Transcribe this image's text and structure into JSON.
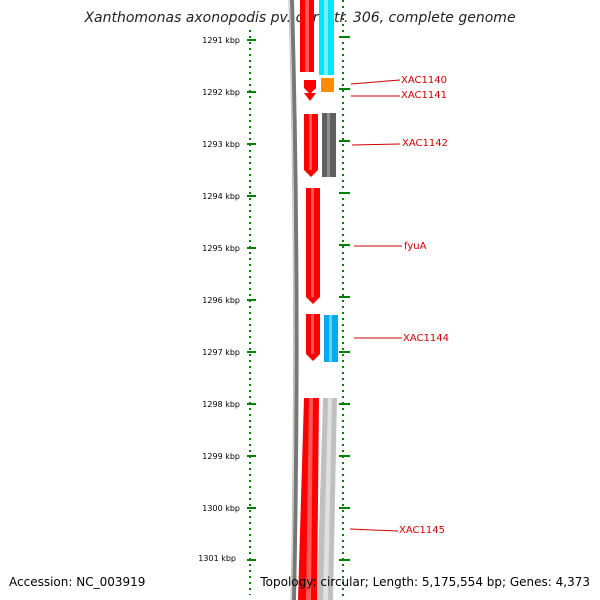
{
  "title": "Xanthomonas axonopodis pv. citri str. 306, complete genome",
  "footer": {
    "accession": "Accession: NC_003919",
    "summary": "Topology: circular; Length: 5,175,554 bp; Genes: 4,373"
  },
  "ruler": {
    "labels": [
      "1291 kbp",
      "1292 kbp",
      "1293 kbp",
      "1294 kbp",
      "1295 kbp",
      "1296 kbp",
      "1297 kbp",
      "1298 kbp",
      "1299 kbp",
      "1300 kbp",
      "1301 kbp"
    ]
  },
  "genes": {
    "labels": [
      "XAC1140",
      "XAC1141",
      "XAC1142",
      "fyuA",
      "XAC1144",
      "XAC1145"
    ]
  },
  "colors": {
    "forward": "#ff0000",
    "cyan": "#00e5ff",
    "orange": "#ff8c00",
    "gray": "#606060",
    "blue": "#00aaee",
    "lightgray": "#c0c0c0",
    "tick": "#008000",
    "label": "#d00000"
  }
}
